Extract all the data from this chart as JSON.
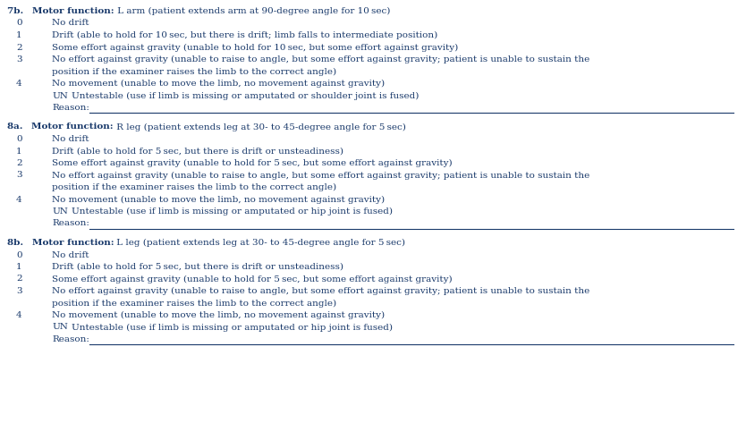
{
  "background_color": "#ffffff",
  "text_color": "#1a3a6b",
  "font_size": 7.5,
  "sections": [
    {
      "header_num": "7b.",
      "header_bold": "Motor function:",
      "header_rest": " L arm (patient extends arm at 90-degree angle for 10 sec)",
      "items": [
        {
          "num": "0",
          "text": "No drift",
          "wrap": false
        },
        {
          "num": "1",
          "text": "Drift (able to hold for 10 sec, but there is drift; limb falls to intermediate position)",
          "wrap": false
        },
        {
          "num": "2",
          "text": "Some effort against gravity (unable to hold for 10 sec, but some effort against gravity)",
          "wrap": false
        },
        {
          "num": "3",
          "text": "No effort against gravity (unable to raise to angle, but some effort against gravity; patient is unable to sustain the",
          "wrap": true,
          "wrap2": "position if the examiner raises the limb to the correct angle)"
        },
        {
          "num": "4",
          "text": "No movement (unable to move the limb, no movement against gravity)",
          "wrap": false
        },
        {
          "num": "UN",
          "text": "Untestable (use if limb is missing or amputated or shoulder joint is fused)",
          "wrap": false
        },
        {
          "num": "reason",
          "text": "Reason:",
          "wrap": false
        }
      ]
    },
    {
      "header_num": "8a.",
      "header_bold": "Motor function:",
      "header_rest": " R leg (patient extends leg at 30- to 45-degree angle for 5 sec)",
      "items": [
        {
          "num": "0",
          "text": "No drift",
          "wrap": false
        },
        {
          "num": "1",
          "text": "Drift (able to hold for 5 sec, but there is drift or unsteadiness)",
          "wrap": false
        },
        {
          "num": "2",
          "text": "Some effort against gravity (unable to hold for 5 sec, but some effort against gravity)",
          "wrap": false
        },
        {
          "num": "3",
          "text": "No effort against gravity (unable to raise to angle, but some effort against gravity; patient is unable to sustain the",
          "wrap": true,
          "wrap2": "position if the examiner raises the limb to the correct angle)"
        },
        {
          "num": "4",
          "text": "No movement (unable to move the limb, no movement against gravity)",
          "wrap": false
        },
        {
          "num": "UN",
          "text": "Untestable (use if limb is missing or amputated or hip joint is fused)",
          "wrap": false
        },
        {
          "num": "reason",
          "text": "Reason:",
          "wrap": false
        }
      ]
    },
    {
      "header_num": "8b.",
      "header_bold": "Motor function:",
      "header_rest": " L leg (patient extends leg at 30- to 45-degree angle for 5 sec)",
      "items": [
        {
          "num": "0",
          "text": "No drift",
          "wrap": false
        },
        {
          "num": "1",
          "text": "Drift (able to hold for 5 sec, but there is drift or unsteadiness)",
          "wrap": false
        },
        {
          "num": "2",
          "text": "Some effort against gravity (unable to hold for 5 sec, but some effort against gravity)",
          "wrap": false
        },
        {
          "num": "3",
          "text": "No effort against gravity (unable to raise to angle, but some effort against gravity; patient is unable to sustain the",
          "wrap": true,
          "wrap2": "position if the examiner raises the limb to the correct angle)"
        },
        {
          "num": "4",
          "text": "No movement (unable to move the limb, no movement against gravity)",
          "wrap": false
        },
        {
          "num": "UN",
          "text": "Untestable (use if limb is missing or amputated or hip joint is fused)",
          "wrap": false
        },
        {
          "num": "reason",
          "text": "Reason:",
          "wrap": false
        }
      ]
    }
  ]
}
